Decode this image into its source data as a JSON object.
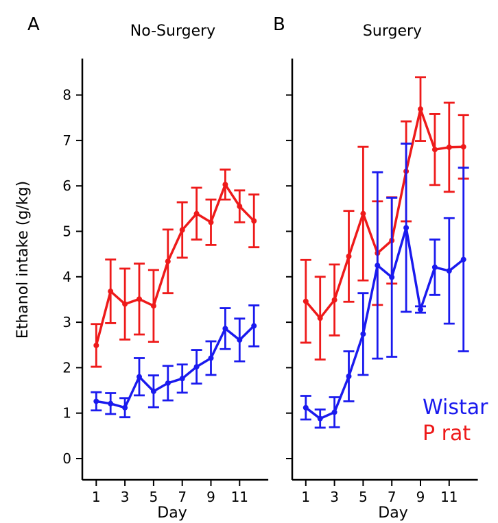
{
  "figure": {
    "panels": [
      {
        "letter": "A",
        "title": "No-Surgery"
      },
      {
        "letter": "B",
        "title": "Surgery"
      }
    ],
    "ylabel": "Ethanol intake (g/kg)",
    "xlabel": "Day",
    "legend": [
      {
        "name": "Wistar",
        "color": "#1a1aee"
      },
      {
        "name": "P rat",
        "color": "#ee1a1a"
      }
    ]
  },
  "chart_data": [
    {
      "type": "line",
      "title": "No-Surgery",
      "xlabel": "Day",
      "ylabel": "Ethanol intake (g/kg)",
      "x": [
        1,
        2,
        3,
        4,
        5,
        6,
        7,
        8,
        9,
        10,
        11,
        12
      ],
      "xticks": [
        1,
        3,
        5,
        7,
        9,
        11
      ],
      "yticks": [
        0,
        1,
        2,
        3,
        4,
        5,
        6,
        7,
        8
      ],
      "ylim": [
        0,
        8.8
      ],
      "xlim": [
        0,
        13
      ],
      "grid": false,
      "series": [
        {
          "name": "P rat",
          "color": "#ee1a1a",
          "values": [
            2.49,
            3.68,
            3.4,
            3.51,
            3.36,
            4.34,
            5.03,
            5.39,
            5.2,
            6.03,
            5.55,
            5.23
          ],
          "error": [
            0.47,
            0.7,
            0.78,
            0.78,
            0.79,
            0.7,
            0.61,
            0.57,
            0.5,
            0.33,
            0.35,
            0.58
          ]
        },
        {
          "name": "Wistar",
          "color": "#1a1aee",
          "values": [
            1.26,
            1.21,
            1.12,
            1.8,
            1.48,
            1.66,
            1.76,
            2.02,
            2.21,
            2.86,
            2.61,
            2.92
          ],
          "error": [
            0.2,
            0.23,
            0.21,
            0.41,
            0.35,
            0.38,
            0.31,
            0.37,
            0.37,
            0.45,
            0.47,
            0.45
          ]
        }
      ]
    },
    {
      "type": "line",
      "title": "Surgery",
      "xlabel": "Day",
      "ylabel": "Ethanol intake (g/kg)",
      "x": [
        1,
        2,
        3,
        4,
        5,
        6,
        7,
        8,
        9,
        10,
        11,
        12
      ],
      "xticks": [
        1,
        3,
        5,
        7,
        9,
        11
      ],
      "yticks": [
        0,
        1,
        2,
        3,
        4,
        5,
        6,
        7,
        8
      ],
      "ylim": [
        0,
        8.8
      ],
      "xlim": [
        0,
        13
      ],
      "grid": false,
      "legend_position": "bottom-right",
      "series": [
        {
          "name": "P rat",
          "color": "#ee1a1a",
          "values": [
            3.46,
            3.09,
            3.49,
            4.45,
            5.39,
            4.52,
            4.8,
            6.32,
            7.69,
            6.8,
            6.85,
            6.86
          ],
          "error": [
            0.91,
            0.91,
            0.78,
            1.0,
            1.47,
            1.14,
            0.95,
            1.1,
            0.7,
            0.78,
            0.98,
            0.7
          ]
        },
        {
          "name": "Wistar",
          "color": "#1a1aee",
          "values": [
            1.12,
            0.88,
            1.02,
            1.81,
            2.74,
            4.25,
            3.99,
            5.08,
            3.28,
            4.21,
            4.13,
            4.38
          ],
          "error": [
            0.26,
            0.2,
            0.33,
            0.55,
            0.9,
            2.05,
            1.75,
            1.85,
            0.07,
            0.61,
            1.16,
            2.02
          ]
        }
      ]
    }
  ]
}
